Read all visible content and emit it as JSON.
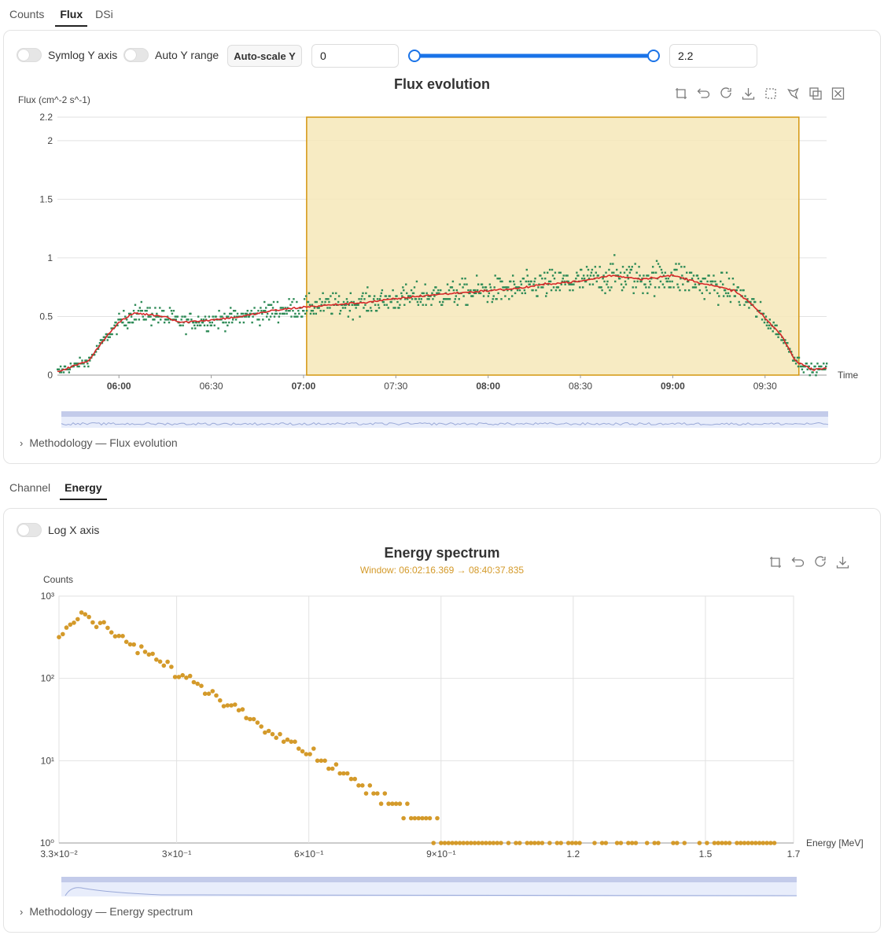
{
  "top_tabs": [
    {
      "label": "Counts",
      "active": false
    },
    {
      "label": "Flux",
      "active": true
    },
    {
      "label": "DSi",
      "active": false
    }
  ],
  "flux_controls": {
    "symlog_label": "Symlog Y axis",
    "auto_y_label": "Auto Y range",
    "autoscale_button": "Auto-scale Y",
    "range_min": "0",
    "range_max": "2.2",
    "slider_min_fraction": 0.0,
    "slider_max_fraction": 1.0
  },
  "flux_methodology": "Methodology — Flux evolution",
  "bottom_tabs": [
    {
      "label": "Channel",
      "active": false
    },
    {
      "label": "Energy",
      "active": true
    }
  ],
  "energy_controls": {
    "logx_label": "Log X axis"
  },
  "energy_methodology": "Methodology — Energy spectrum",
  "colors": {
    "accent": "#1a73e8",
    "scatter_green": "#2e8b57",
    "trend_red": "#d62728",
    "selection_fill": "#f6e7b8",
    "selection_border": "#d4960f",
    "energy_points": "#d49a2a",
    "window_text": "#d49a2a"
  },
  "chart_data": [
    {
      "type": "scatter",
      "title": "Flux evolution",
      "ylabel": "Flux (cm^-2 s^-1)",
      "xlabel": "Time",
      "x_range": [
        "05:40",
        "09:50"
      ],
      "ylim": [
        0,
        2.2
      ],
      "y_ticks": [
        "0",
        "0.5",
        "1",
        "1.5",
        "2",
        "2.2"
      ],
      "x_ticks": [
        {
          "label": "06:00",
          "bold": true
        },
        {
          "label": "06:30",
          "bold": false
        },
        {
          "label": "07:00",
          "bold": true
        },
        {
          "label": "07:30",
          "bold": false
        },
        {
          "label": "08:00",
          "bold": true
        },
        {
          "label": "08:30",
          "bold": false
        },
        {
          "label": "09:00",
          "bold": true
        },
        {
          "label": "09:30",
          "bold": false
        }
      ],
      "grid": true,
      "selection": {
        "start": "07:01",
        "end": "09:41"
      },
      "toolbox_icons": [
        "box-zoom-icon",
        "undo-icon",
        "reset-icon",
        "download-icon",
        "rect-select-icon",
        "lasso-select-icon",
        "keep-select-icon",
        "clear-select-icon"
      ],
      "series": [
        {
          "kind": "scatter-points",
          "trend": [
            [
              "05:40",
              0.03
            ],
            [
              "05:50",
              0.12
            ],
            [
              "05:55",
              0.3
            ],
            [
              "06:00",
              0.45
            ],
            [
              "06:05",
              0.53
            ],
            [
              "06:15",
              0.5
            ],
            [
              "06:20",
              0.45
            ],
            [
              "06:30",
              0.47
            ],
            [
              "06:40",
              0.5
            ],
            [
              "06:50",
              0.55
            ],
            [
              "07:00",
              0.58
            ],
            [
              "07:10",
              0.6
            ],
            [
              "07:20",
              0.62
            ],
            [
              "07:30",
              0.65
            ],
            [
              "07:40",
              0.68
            ],
            [
              "07:50",
              0.7
            ],
            [
              "08:00",
              0.72
            ],
            [
              "08:10",
              0.74
            ],
            [
              "08:20",
              0.78
            ],
            [
              "08:30",
              0.8
            ],
            [
              "08:40",
              0.85
            ],
            [
              "08:50",
              0.82
            ],
            [
              "09:00",
              0.85
            ],
            [
              "09:10",
              0.78
            ],
            [
              "09:20",
              0.72
            ],
            [
              "09:25",
              0.62
            ],
            [
              "09:35",
              0.35
            ],
            [
              "09:40",
              0.12
            ],
            [
              "09:45",
              0.05
            ],
            [
              "09:50",
              0.06
            ]
          ]
        }
      ]
    },
    {
      "type": "scatter",
      "title": "Energy spectrum",
      "subtitle": "Window: 06:02:16.369 → 08:40:37.835",
      "ylabel": "Counts",
      "xlabel": "Energy [MeV]",
      "y_scale": "log",
      "ylim": [
        1,
        1000
      ],
      "y_ticks": [
        "10⁰",
        "10¹",
        "10²",
        "10³"
      ],
      "xlim": [
        0.033,
        1.7
      ],
      "x_ticks": [
        "3.3×10⁻²",
        "3×10⁻¹",
        "6×10⁻¹",
        "9×10⁻¹",
        "1.2",
        "1.5",
        "1.7"
      ],
      "grid": true,
      "toolbox_icons": [
        "box-zoom-icon",
        "undo-icon",
        "reset-icon",
        "download-icon"
      ],
      "series": [
        {
          "kind": "power-law-points",
          "peak_energy": 0.08,
          "peak_counts": 600
        }
      ]
    }
  ]
}
